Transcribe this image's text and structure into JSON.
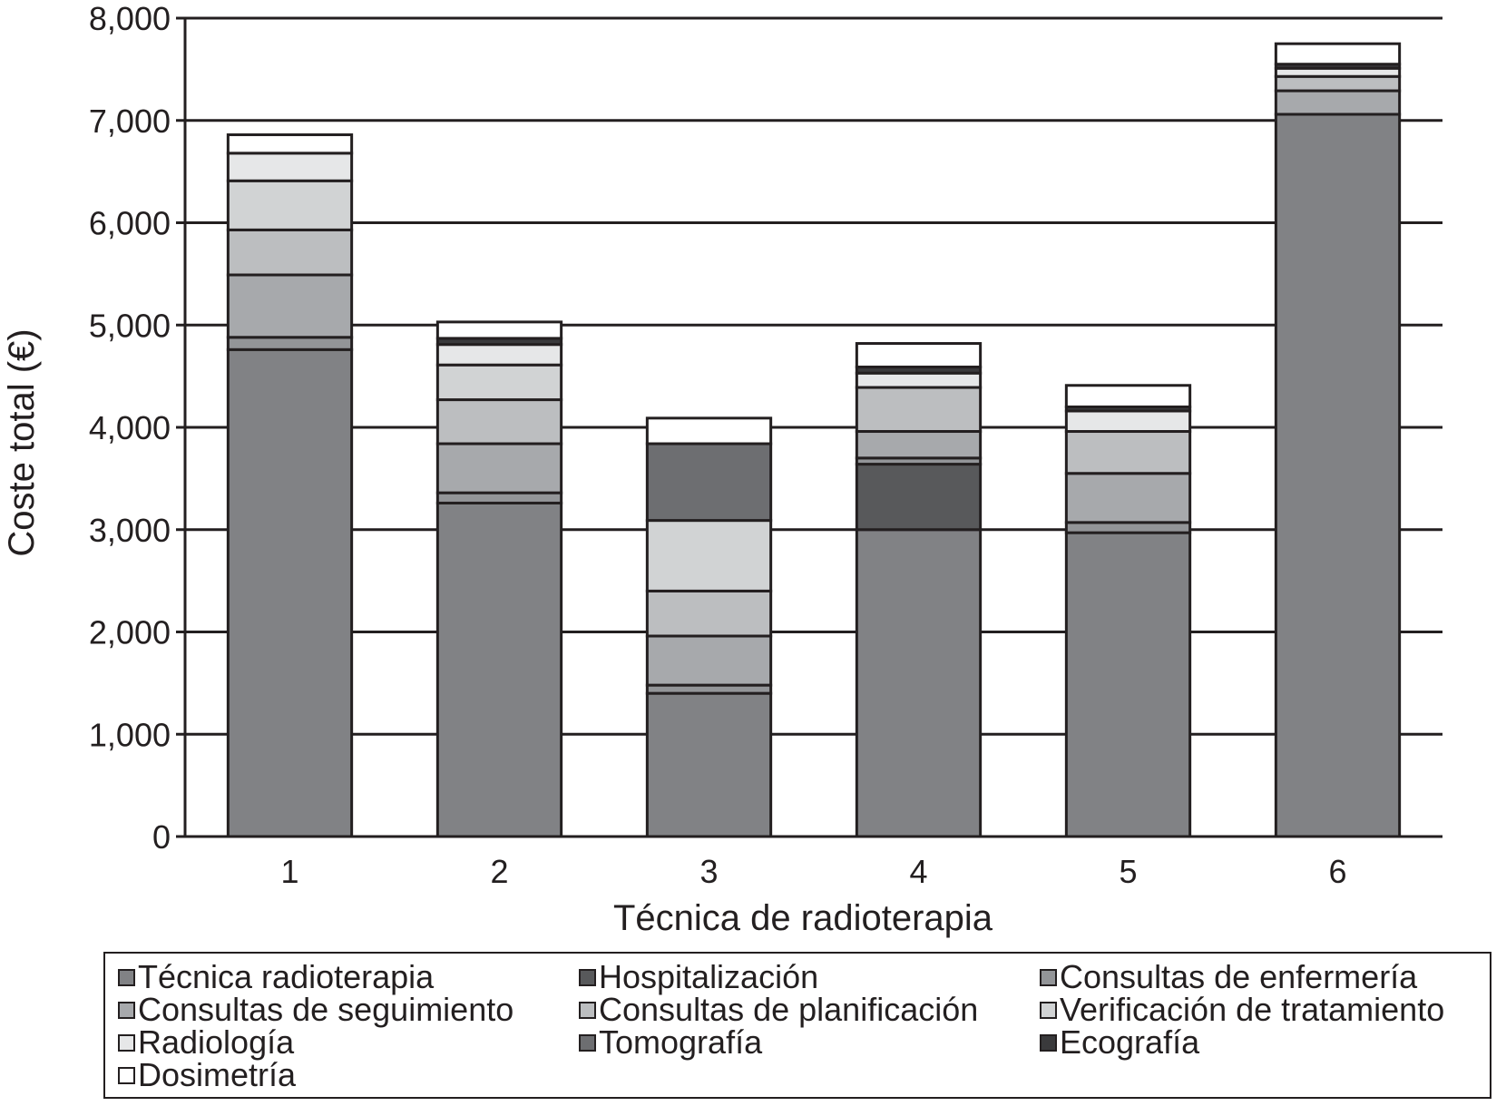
{
  "chart_data": {
    "type": "bar",
    "stacked": true,
    "title": "",
    "xlabel": "Técnica de radioterapia",
    "ylabel": "Coste total (€)",
    "ylim": [
      0,
      8000
    ],
    "y_ticks": [
      0,
      1000,
      2000,
      3000,
      4000,
      5000,
      6000,
      7000,
      8000
    ],
    "y_tick_labels": [
      "0",
      "1,000",
      "2,000",
      "3,000",
      "4,000",
      "5,000",
      "6,000",
      "7,000",
      "8,000"
    ],
    "grid": "horizontal",
    "legend_position": "bottom",
    "categories": [
      "1",
      "2",
      "3",
      "4",
      "5",
      "6"
    ],
    "series": [
      {
        "name": "Técnica radioterapia",
        "color": "#818285",
        "values": [
          4760,
          3260,
          1400,
          3000,
          2970,
          7060
        ]
      },
      {
        "name": "Hospitalización",
        "color": "#58595b",
        "values": [
          0,
          0,
          0,
          640,
          0,
          0
        ]
      },
      {
        "name": "Consultas de enfermería",
        "color": "#939598",
        "values": [
          120,
          100,
          80,
          60,
          100,
          0
        ]
      },
      {
        "name": "Consultas de seguimiento",
        "color": "#a7a9ac",
        "values": [
          610,
          480,
          480,
          260,
          480,
          230
        ]
      },
      {
        "name": "Consultas de planificación",
        "color": "#bcbec0",
        "values": [
          440,
          430,
          440,
          430,
          410,
          140
        ]
      },
      {
        "name": "Verificación de tratamiento",
        "color": "#d1d3d4",
        "values": [
          480,
          340,
          690,
          0,
          0,
          0
        ]
      },
      {
        "name": "Radiología",
        "color": "#e6e7e8",
        "values": [
          270,
          200,
          0,
          140,
          200,
          80
        ]
      },
      {
        "name": "Tomografía",
        "color": "#6d6e71",
        "values": [
          0,
          0,
          750,
          0,
          0,
          0
        ]
      },
      {
        "name": "Ecografía",
        "color": "#3a3a3c",
        "values": [
          0,
          60,
          0,
          60,
          40,
          40
        ]
      },
      {
        "name": "Dosimetría",
        "color": "#ffffff",
        "values": [
          180,
          160,
          250,
          230,
          210,
          200
        ]
      }
    ]
  }
}
